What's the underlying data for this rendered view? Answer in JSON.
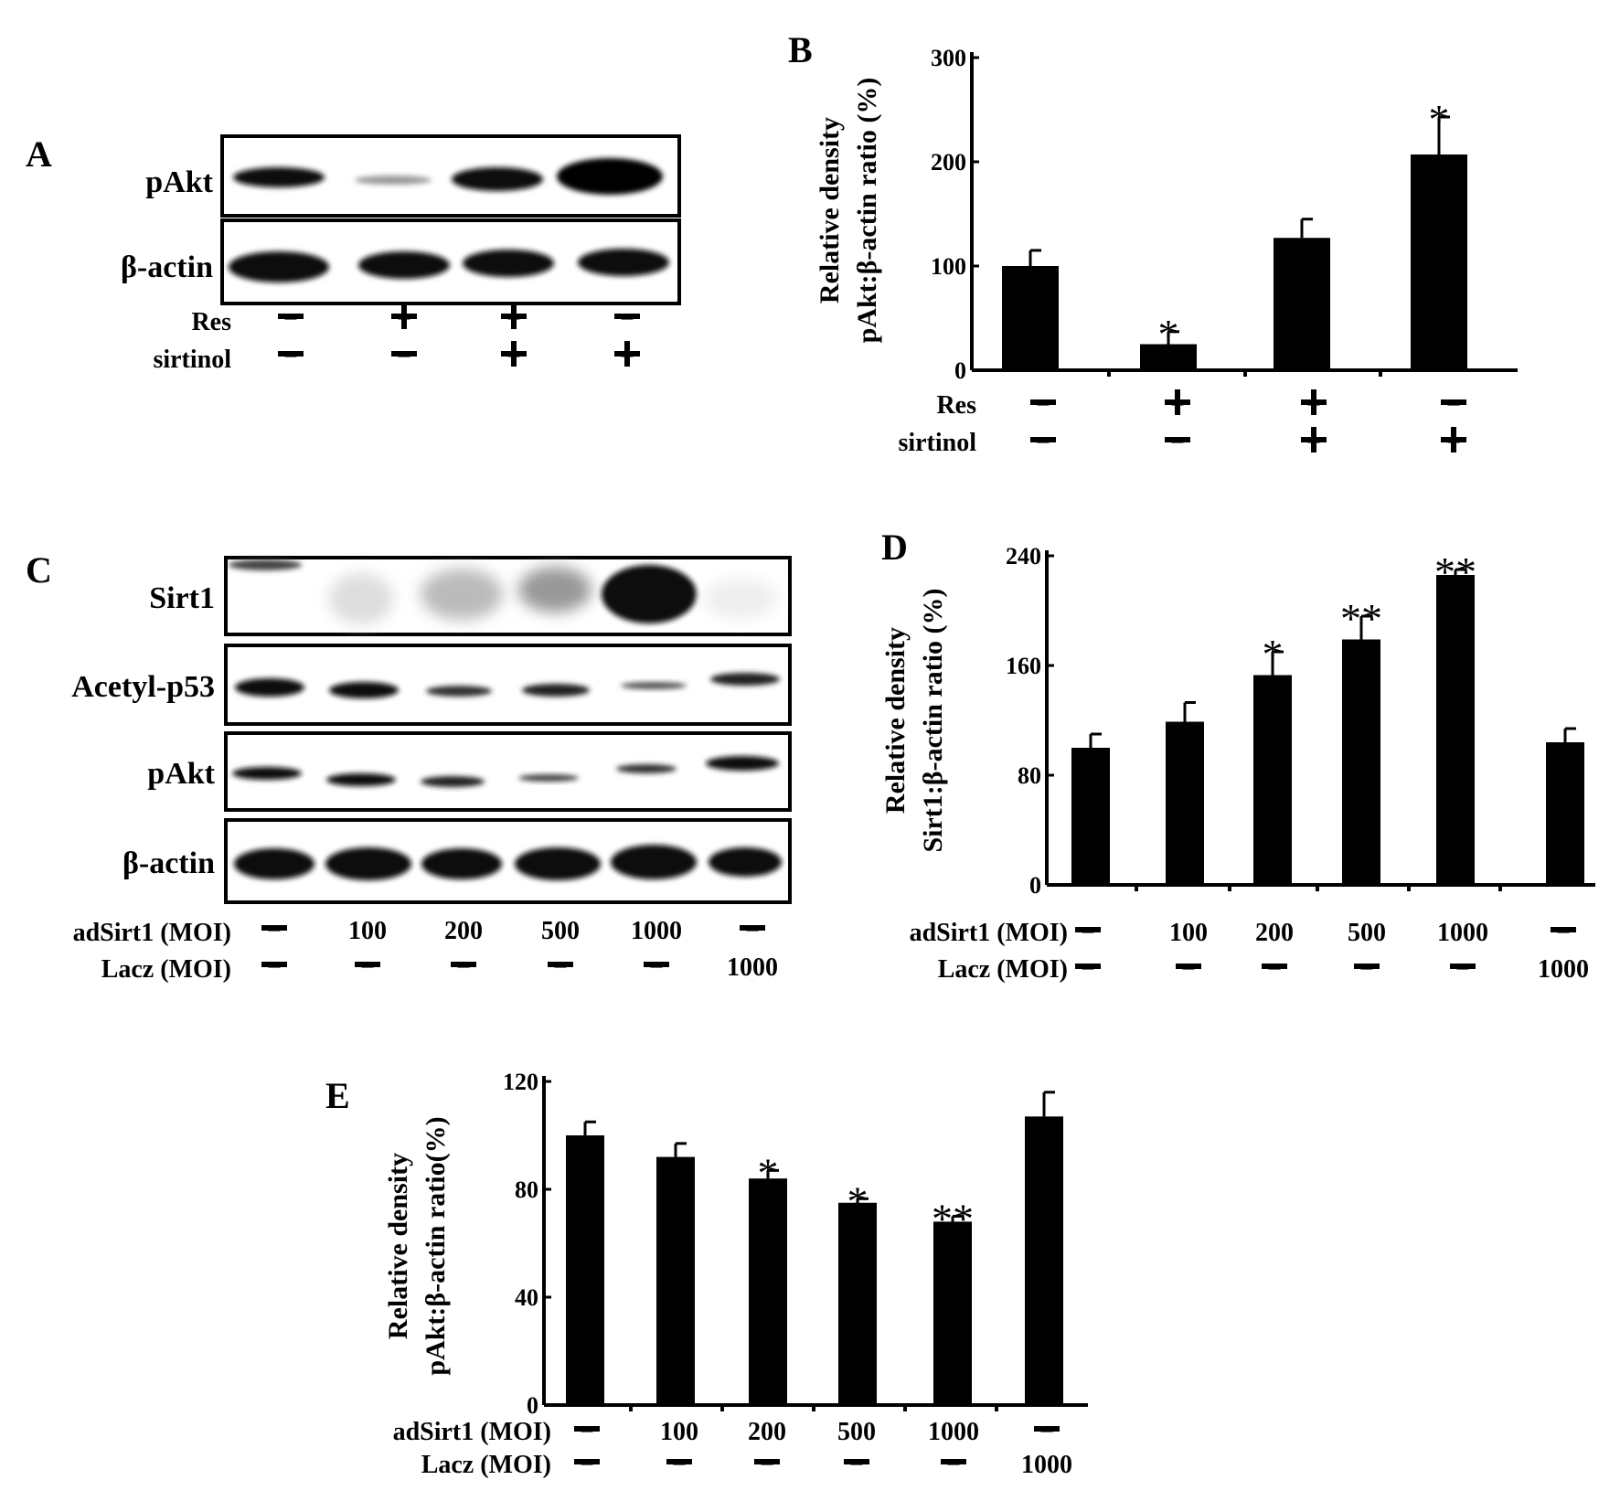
{
  "panels": {
    "A": {
      "letter": "A",
      "blots": [
        "pAkt",
        "β-actin"
      ],
      "conditions": [
        {
          "label": "Res",
          "values": [
            "−",
            "+",
            "+",
            "−"
          ]
        },
        {
          "label": "sirtinol",
          "values": [
            "−",
            "−",
            "+",
            "+"
          ]
        }
      ]
    },
    "C": {
      "letter": "C",
      "blots": [
        "Sirt1",
        "Acetyl-p53",
        "pAkt",
        "β-actin"
      ],
      "conditions": [
        {
          "label": "adSirt1 (MOI)",
          "values": [
            "−",
            "100",
            "200",
            "500",
            "1000",
            "−"
          ]
        },
        {
          "label": "Lacz (MOI)",
          "values": [
            "−",
            "−",
            "−",
            "−",
            "−",
            "1000"
          ]
        }
      ]
    }
  },
  "chart_data": [
    {
      "panel": "B",
      "type": "bar",
      "ylabel": [
        "Relative density",
        "pAkt:β-actin ratio (%)"
      ],
      "ylim": [
        0,
        300
      ],
      "yticks": [
        "0",
        "100",
        "200",
        "300"
      ],
      "values": [
        100,
        25,
        127,
        207
      ],
      "errors": [
        15,
        12,
        18,
        36
      ],
      "significance": [
        "",
        "*",
        "",
        "*"
      ],
      "conditions": [
        {
          "label": "Res",
          "values": [
            "−",
            "+",
            "+",
            "−"
          ]
        },
        {
          "label": "sirtinol",
          "values": [
            "−",
            "−",
            "+",
            "+"
          ]
        }
      ],
      "bar_color": "#000000"
    },
    {
      "panel": "D",
      "type": "bar",
      "ylabel": [
        "Relative density",
        "Sirt1:β-actin ratio (%)"
      ],
      "ylim": [
        0,
        240
      ],
      "yticks": [
        "0",
        "80",
        "160",
        "240"
      ],
      "values": [
        100,
        119,
        153,
        179,
        226,
        104
      ],
      "errors": [
        10,
        14,
        17,
        17,
        4,
        10
      ],
      "significance": [
        "",
        "",
        "*",
        "**",
        "**",
        ""
      ],
      "conditions": [
        {
          "label": "adSirt1 (MOI)",
          "values": [
            "−",
            "100",
            "200",
            "500",
            "1000",
            "−"
          ]
        },
        {
          "label": "Lacz (MOI)",
          "values": [
            "−",
            "−",
            "−",
            "−",
            "−",
            "1000"
          ]
        }
      ],
      "bar_color": "#000000"
    },
    {
      "panel": "E",
      "type": "bar",
      "ylabel": [
        "Relative density",
        "pAkt:β-actin ratio(%)"
      ],
      "ylim": [
        0,
        120
      ],
      "yticks": [
        "0",
        "40",
        "80",
        "120"
      ],
      "values": [
        100,
        92,
        84,
        75,
        68,
        107
      ],
      "errors": [
        5,
        5,
        3,
        1.5,
        2,
        9
      ],
      "significance": [
        "",
        "",
        "*",
        "*",
        "**",
        ""
      ],
      "conditions": [
        {
          "label": "adSirt1 (MOI)",
          "values": [
            "−",
            "100",
            "200",
            "500",
            "1000",
            "−"
          ]
        },
        {
          "label": "Lacz (MOI)",
          "values": [
            "−",
            "−",
            "−",
            "−",
            "−",
            "1000"
          ]
        }
      ],
      "bar_color": "#000000"
    }
  ]
}
